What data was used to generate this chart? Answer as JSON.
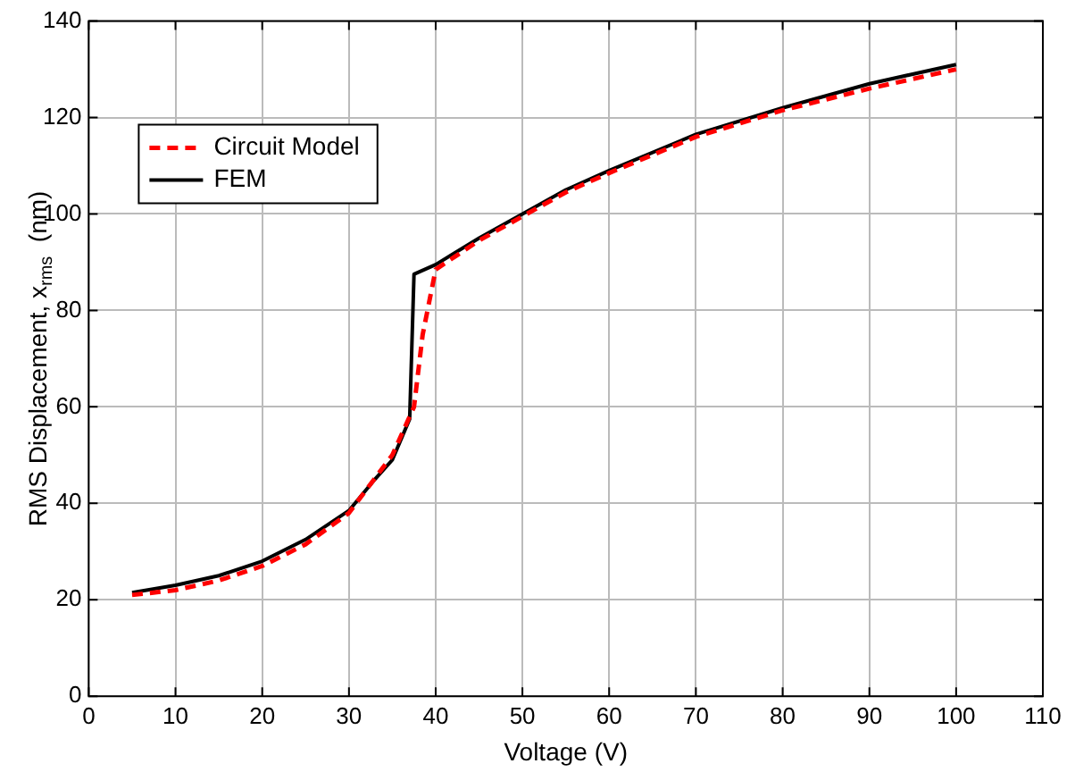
{
  "chart_data": {
    "type": "line",
    "xlabel": "Voltage (V)",
    "ylabel": "RMS Displacement, x$_{rms}$  (nm)",
    "xlim": [
      0,
      110
    ],
    "xticks": [
      0,
      10,
      20,
      30,
      40,
      50,
      60,
      70,
      80,
      90,
      100,
      110
    ],
    "ylim": [
      0,
      140
    ],
    "yticks": [
      0,
      20,
      40,
      60,
      80,
      100,
      120,
      140
    ],
    "grid": true,
    "legend": "top left",
    "marker": "none",
    "series": [
      {
        "name": "Circuit Model",
        "color": "#ff0000",
        "line_style": "dashed",
        "x": [
          5,
          10,
          15,
          20,
          25,
          30,
          35,
          37.5,
          38.5,
          40,
          45,
          50,
          55,
          60,
          70,
          80,
          90,
          100
        ],
        "values": [
          21,
          22,
          24,
          27,
          31.5,
          38,
          50,
          60,
          75,
          88.5,
          94.5,
          99.5,
          104.5,
          108.5,
          116,
          121.5,
          126,
          130
        ]
      },
      {
        "name": "FEM",
        "color": "#000000",
        "line_style": "solid",
        "x": [
          5,
          10,
          15,
          20,
          25,
          30,
          33,
          35,
          37,
          37.5,
          40,
          45,
          50,
          55,
          60,
          70,
          80,
          90,
          100
        ],
        "values": [
          21.5,
          23,
          25,
          28,
          32.5,
          38.5,
          45,
          49,
          57.5,
          87.5,
          89.5,
          95,
          100,
          105,
          109,
          116.5,
          122,
          127,
          131
        ]
      }
    ]
  }
}
